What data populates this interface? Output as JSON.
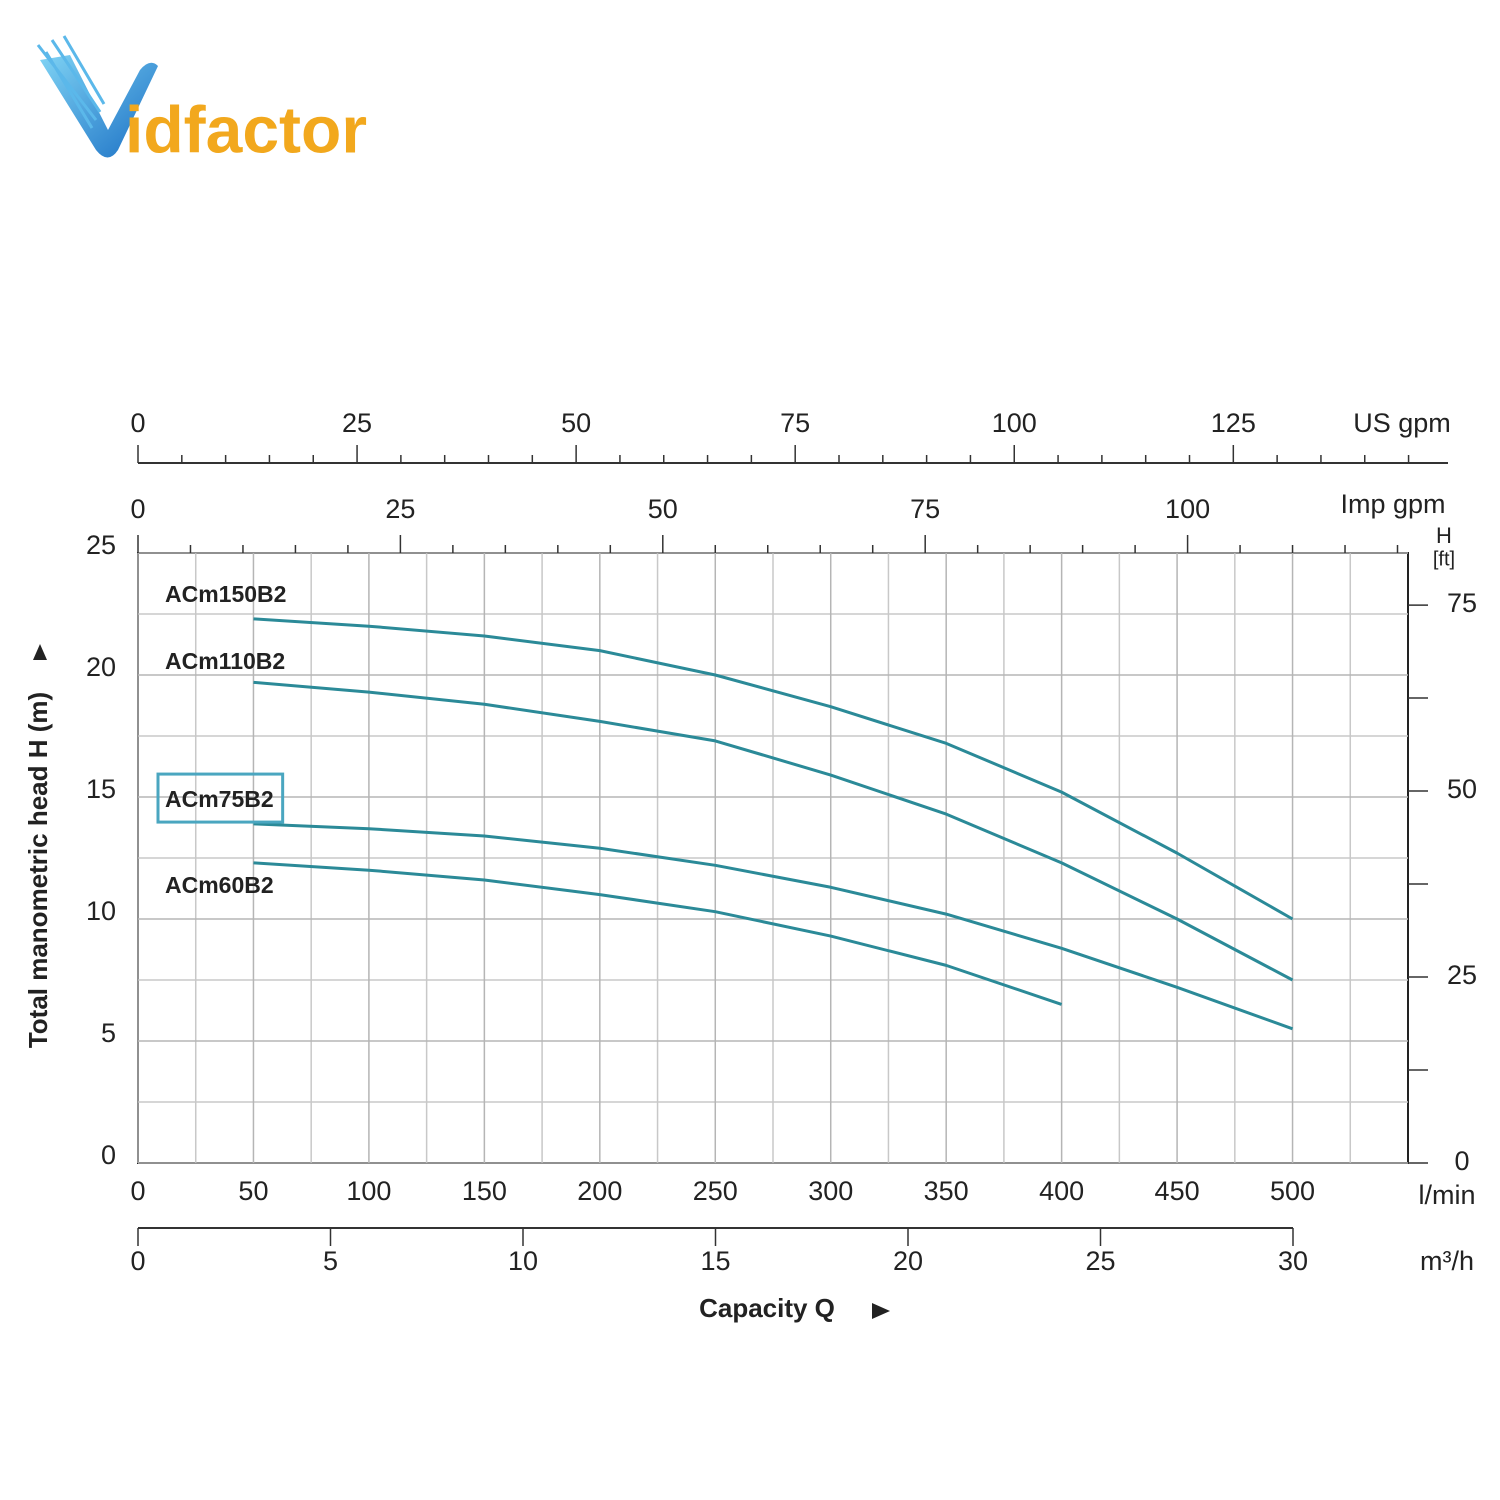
{
  "logo": {
    "text": "idfactor"
  },
  "chart_data": {
    "type": "line",
    "x_label": "Capacity Q",
    "y_label": "Total manometric head H (m)",
    "x_unit": "l/min",
    "x": [
      50,
      100,
      150,
      200,
      250,
      300,
      350,
      400,
      450,
      500
    ],
    "xlim": [
      0,
      550
    ],
    "xticks": [
      0,
      50,
      100,
      150,
      200,
      250,
      300,
      350,
      400,
      450,
      500
    ],
    "ylim": [
      0,
      25
    ],
    "yticks": [
      0,
      5,
      10,
      15,
      20,
      25
    ],
    "grid": true,
    "grid_divisions": 2,
    "series": [
      {
        "name": "ACm150B2",
        "color": "#2b8a98",
        "values": [
          22.3,
          22.0,
          21.6,
          21.0,
          20.0,
          18.7,
          17.2,
          15.2,
          12.7,
          10.0
        ]
      },
      {
        "name": "ACm110B2",
        "color": "#2b8a98",
        "values": [
          19.7,
          19.3,
          18.8,
          18.1,
          17.3,
          15.9,
          14.3,
          12.3,
          10.0,
          7.5
        ]
      },
      {
        "name": "ACm75B2",
        "color": "#2b8a98",
        "highlighted": true,
        "values": [
          13.9,
          13.7,
          13.4,
          12.9,
          12.2,
          11.3,
          10.2,
          8.8,
          7.2,
          5.5
        ]
      },
      {
        "name": "ACm60B2",
        "color": "#2b8a98",
        "values": [
          12.3,
          12.0,
          11.6,
          11.0,
          10.3,
          9.3,
          8.1,
          6.5,
          null,
          null
        ]
      }
    ],
    "secondary_axes": [
      {
        "name": "US gpm",
        "position": "top",
        "lim": [
          0,
          149.5
        ],
        "ticks": [
          0,
          25,
          50,
          75,
          100,
          125
        ],
        "minor_divisions": 5
      },
      {
        "name": "Imp gpm",
        "position": "plot-top",
        "lim": [
          0,
          121
        ],
        "ticks": [
          0,
          25,
          50,
          75,
          100
        ],
        "minor_divisions": 5
      },
      {
        "name": "m³/h",
        "position": "bottom",
        "lim": [
          0,
          30
        ],
        "ticks": [
          0,
          5,
          10,
          15,
          20,
          25,
          30
        ],
        "minor_divisions": 1
      },
      {
        "name": "H",
        "unit": "[ft]",
        "position": "right",
        "lim": [
          0,
          82
        ],
        "ticks": [
          0,
          25,
          50,
          75
        ],
        "minor_divisions": 2
      }
    ]
  }
}
